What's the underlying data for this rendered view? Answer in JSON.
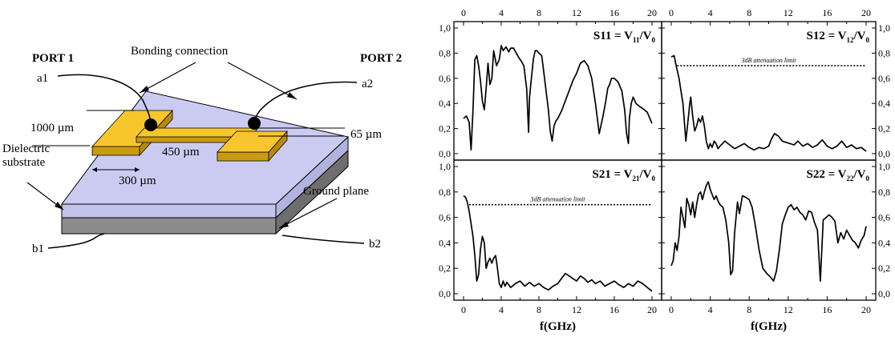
{
  "diagram": {
    "port1": "PORT 1",
    "port2": "PORT 2",
    "bonding": "Bonding connection",
    "a1": "a1",
    "a2": "a2",
    "b1": "b1",
    "b2": "b2",
    "dim_1000": "1000 µm",
    "dim_65": "65 µm",
    "dim_450": "450 µm",
    "dim_300": "300 µm",
    "dielectric_line1": "Dielectric",
    "dielectric_line2": "substrate",
    "ground": "Ground plane",
    "colors": {
      "substrate_top": "#cbcbf2",
      "substrate_side": "#c2c2ea",
      "ground": "#8c8c8c",
      "pad": "#f7c52c",
      "pad_side": "#c99a12"
    }
  },
  "chart_data": [
    {
      "type": "line",
      "title": "S11 = V11/V0",
      "title_parts": {
        "main": "S11 = V",
        "sub1": "11",
        "mid": "/V",
        "sub2": "0"
      },
      "xlim": [
        0,
        20
      ],
      "ylim": [
        0,
        1
      ],
      "x_ticks": [
        "0",
        "4",
        "8",
        "12",
        "16",
        "20"
      ],
      "y_ticks": [
        "0,0",
        "0,2",
        "0,4",
        "0,6",
        "0,8",
        "1,0"
      ],
      "xlabel": "",
      "x": [
        0.0,
        0.3,
        0.6,
        0.8,
        1.0,
        1.2,
        1.4,
        1.6,
        1.8,
        2.0,
        2.2,
        2.4,
        2.6,
        2.8,
        3.0,
        3.2,
        3.5,
        3.8,
        4.0,
        4.2,
        4.5,
        4.8,
        5.0,
        5.3,
        5.6,
        5.9,
        6.1,
        6.4,
        6.7,
        6.9,
        7.0,
        7.2,
        7.4,
        7.6,
        7.8,
        8.0,
        8.3,
        8.6,
        9.0,
        9.2,
        9.4,
        9.6,
        9.8,
        10.0,
        10.4,
        10.8,
        11.2,
        11.6,
        12.0,
        12.4,
        12.8,
        13.2,
        13.6,
        14.0,
        14.4,
        14.8,
        15.1,
        15.3,
        15.5,
        15.7,
        16.0,
        16.4,
        16.8,
        17.1,
        17.3,
        17.5,
        17.6,
        17.8,
        18.0,
        18.3,
        18.6,
        19.0,
        19.5,
        20.0
      ],
      "y": [
        0.28,
        0.3,
        0.25,
        0.03,
        0.35,
        0.75,
        0.78,
        0.7,
        0.58,
        0.42,
        0.35,
        0.52,
        0.72,
        0.55,
        0.6,
        0.82,
        0.7,
        0.75,
        0.86,
        0.82,
        0.85,
        0.81,
        0.84,
        0.84,
        0.8,
        0.76,
        0.74,
        0.7,
        0.52,
        0.17,
        0.45,
        0.6,
        0.75,
        0.82,
        0.82,
        0.8,
        0.78,
        0.6,
        0.35,
        0.18,
        0.1,
        0.22,
        0.26,
        0.28,
        0.34,
        0.42,
        0.5,
        0.58,
        0.64,
        0.72,
        0.74,
        0.7,
        0.6,
        0.4,
        0.16,
        0.3,
        0.42,
        0.52,
        0.55,
        0.6,
        0.6,
        0.57,
        0.5,
        0.35,
        0.16,
        0.08,
        0.28,
        0.4,
        0.45,
        0.4,
        0.38,
        0.36,
        0.33,
        0.24
      ]
    },
    {
      "type": "line",
      "title": "S12 = V12/V0",
      "title_parts": {
        "main": "S12 = V",
        "sub1": "12",
        "mid": "/V",
        "sub2": "0"
      },
      "xlim": [
        0,
        20
      ],
      "ylim": [
        0,
        1
      ],
      "x_ticks": [
        "0",
        "4",
        "8",
        "12",
        "16",
        "20"
      ],
      "y_ticks": [
        "0,0",
        "0,2",
        "0,4",
        "0,6",
        "0,8",
        "1,0"
      ],
      "xlabel": "",
      "attenuation_label": "3dB attenuation limit",
      "attenuation_value": 0.7,
      "x": [
        0.0,
        0.3,
        0.5,
        0.8,
        1.0,
        1.2,
        1.4,
        1.5,
        1.7,
        1.9,
        2.0,
        2.2,
        2.4,
        2.6,
        2.8,
        3.0,
        3.2,
        3.4,
        3.6,
        3.8,
        4.0,
        4.2,
        4.4,
        4.6,
        4.8,
        5.0,
        5.5,
        6.0,
        6.5,
        7.0,
        7.5,
        8.0,
        8.5,
        9.0,
        9.5,
        10.0,
        10.3,
        10.6,
        11.0,
        11.4,
        11.8,
        12.2,
        12.6,
        13.0,
        13.5,
        14.0,
        14.5,
        15.0,
        15.5,
        16.0,
        16.5,
        17.0,
        17.5,
        18.0,
        18.5,
        19.0,
        19.5,
        20.0
      ],
      "y": [
        0.77,
        0.78,
        0.7,
        0.6,
        0.5,
        0.4,
        0.2,
        0.1,
        0.25,
        0.4,
        0.45,
        0.3,
        0.18,
        0.22,
        0.28,
        0.25,
        0.3,
        0.22,
        0.1,
        0.04,
        0.08,
        0.05,
        0.1,
        0.08,
        0.04,
        0.06,
        0.1,
        0.07,
        0.04,
        0.06,
        0.08,
        0.05,
        0.03,
        0.05,
        0.04,
        0.06,
        0.12,
        0.16,
        0.14,
        0.1,
        0.09,
        0.08,
        0.07,
        0.1,
        0.06,
        0.08,
        0.05,
        0.07,
        0.11,
        0.06,
        0.04,
        0.06,
        0.1,
        0.05,
        0.07,
        0.04,
        0.05,
        0.02
      ]
    },
    {
      "type": "line",
      "title": "S21 = V21/V0",
      "title_parts": {
        "main": "S21 = V",
        "sub1": "21",
        "mid": "/V",
        "sub2": "0"
      },
      "xlim": [
        0,
        20
      ],
      "ylim": [
        0,
        1
      ],
      "x_ticks": [
        "0",
        "4",
        "8",
        "12",
        "16",
        "20"
      ],
      "y_ticks": [
        "0,0",
        "0,2",
        "0,4",
        "0,6",
        "0,8",
        "1,0"
      ],
      "xlabel": "f(GHz)",
      "attenuation_label": "3dB attenuation limit",
      "attenuation_value": 0.7,
      "x": [
        0.0,
        0.2,
        0.4,
        0.6,
        0.8,
        1.0,
        1.2,
        1.4,
        1.6,
        1.8,
        2.0,
        2.2,
        2.4,
        2.6,
        2.8,
        3.0,
        3.2,
        3.4,
        3.6,
        3.8,
        4.0,
        4.2,
        4.4,
        4.6,
        4.8,
        5.0,
        5.5,
        6.0,
        6.5,
        7.0,
        7.5,
        8.0,
        8.5,
        9.0,
        9.5,
        10.0,
        10.4,
        10.8,
        11.2,
        11.6,
        12.0,
        12.4,
        12.8,
        13.2,
        13.6,
        14.0,
        14.5,
        15.0,
        15.5,
        16.0,
        16.5,
        17.0,
        17.5,
        18.0,
        18.5,
        19.0,
        19.5,
        20.0
      ],
      "y": [
        0.77,
        0.76,
        0.72,
        0.65,
        0.55,
        0.45,
        0.3,
        0.1,
        0.15,
        0.35,
        0.45,
        0.4,
        0.2,
        0.25,
        0.28,
        0.24,
        0.28,
        0.3,
        0.2,
        0.08,
        0.05,
        0.1,
        0.06,
        0.09,
        0.07,
        0.05,
        0.08,
        0.1,
        0.06,
        0.09,
        0.06,
        0.08,
        0.05,
        0.03,
        0.06,
        0.08,
        0.12,
        0.16,
        0.14,
        0.12,
        0.1,
        0.14,
        0.12,
        0.09,
        0.11,
        0.08,
        0.1,
        0.06,
        0.08,
        0.1,
        0.07,
        0.05,
        0.08,
        0.06,
        0.1,
        0.08,
        0.05,
        0.02
      ]
    },
    {
      "type": "line",
      "title": "S22 = V22/V0",
      "title_parts": {
        "main": "S22 = V",
        "sub1": "22",
        "mid": "/V",
        "sub2": "0"
      },
      "xlim": [
        0,
        20
      ],
      "ylim": [
        0,
        1
      ],
      "x_ticks": [
        "0",
        "4",
        "8",
        "12",
        "16",
        "20"
      ],
      "y_ticks": [
        "0,0",
        "0,2",
        "0,4",
        "0,6",
        "0,8",
        "1,0"
      ],
      "xlabel": "f(GHz)",
      "x": [
        0.0,
        0.2,
        0.4,
        0.6,
        0.8,
        1.0,
        1.2,
        1.4,
        1.6,
        1.8,
        2.0,
        2.2,
        2.4,
        2.6,
        2.8,
        3.0,
        3.2,
        3.4,
        3.6,
        3.8,
        4.0,
        4.2,
        4.4,
        4.6,
        4.8,
        5.0,
        5.3,
        5.6,
        5.9,
        6.1,
        6.3,
        6.5,
        6.8,
        7.0,
        7.3,
        7.6,
        8.0,
        8.3,
        8.6,
        9.0,
        9.4,
        9.8,
        10.2,
        10.5,
        10.8,
        11.1,
        11.4,
        11.7,
        12.0,
        12.3,
        12.6,
        12.9,
        13.2,
        13.5,
        13.8,
        14.1,
        14.4,
        14.7,
        15.0,
        15.3,
        15.6,
        15.9,
        16.2,
        16.5,
        16.8,
        17.1,
        17.4,
        17.7,
        18.0,
        18.3,
        18.6,
        18.9,
        19.2,
        19.5,
        19.8,
        20.0
      ],
      "y": [
        0.22,
        0.26,
        0.4,
        0.34,
        0.45,
        0.68,
        0.6,
        0.52,
        0.75,
        0.7,
        0.62,
        0.72,
        0.6,
        0.7,
        0.78,
        0.8,
        0.74,
        0.8,
        0.85,
        0.88,
        0.82,
        0.78,
        0.74,
        0.77,
        0.73,
        0.7,
        0.68,
        0.58,
        0.4,
        0.15,
        0.18,
        0.48,
        0.72,
        0.63,
        0.77,
        0.76,
        0.74,
        0.68,
        0.55,
        0.35,
        0.2,
        0.16,
        0.13,
        0.1,
        0.18,
        0.35,
        0.55,
        0.62,
        0.68,
        0.7,
        0.66,
        0.68,
        0.64,
        0.62,
        0.58,
        0.65,
        0.64,
        0.56,
        0.5,
        0.1,
        0.58,
        0.6,
        0.62,
        0.6,
        0.57,
        0.4,
        0.48,
        0.43,
        0.5,
        0.46,
        0.42,
        0.4,
        0.36,
        0.42,
        0.46,
        0.53
      ]
    }
  ]
}
